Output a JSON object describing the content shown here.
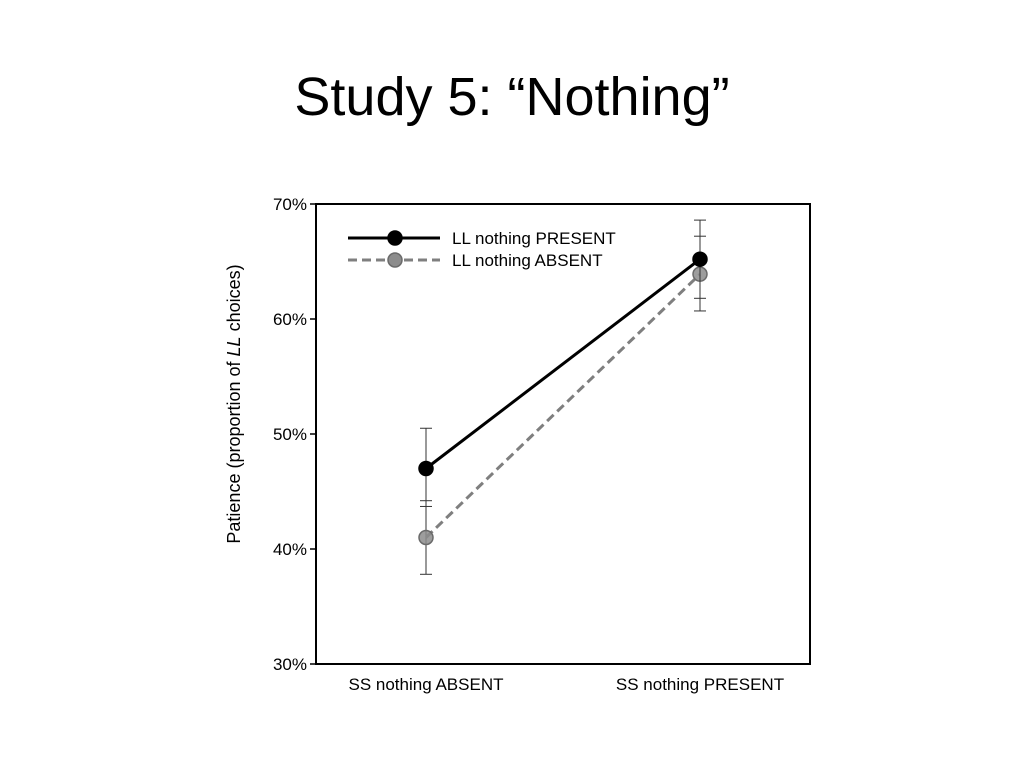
{
  "slide": {
    "title": "Study 5: “Nothing”"
  },
  "chart_data": {
    "type": "line",
    "title": "",
    "xlabel": "",
    "ylabel_parts": [
      "Patience (proportion of ",
      "LL",
      " choices)"
    ],
    "categories": [
      "SS nothing ABSENT",
      "SS nothing PRESENT"
    ],
    "ylim": [
      0.3,
      0.7
    ],
    "yticks": [
      {
        "value": 0.3,
        "label": "30%"
      },
      {
        "value": 0.4,
        "label": "40%"
      },
      {
        "value": 0.5,
        "label": "50%"
      },
      {
        "value": 0.6,
        "label": "60%"
      },
      {
        "value": 0.7,
        "label": "70%"
      }
    ],
    "grid": false,
    "legend_position": "top-left",
    "series": [
      {
        "name": "LL nothing PRESENT",
        "values": [
          0.47,
          0.652
        ],
        "error_low": [
          0.437,
          0.618
        ],
        "error_high": [
          0.505,
          0.686
        ],
        "color": "#000000",
        "marker_color": "#000000",
        "dashed": false
      },
      {
        "name": "LL nothing ABSENT",
        "values": [
          0.41,
          0.639
        ],
        "error_low": [
          0.378,
          0.607
        ],
        "error_high": [
          0.442,
          0.672
        ],
        "color": "#7f7f7f",
        "marker_color": "#8c8c8c",
        "dashed": true
      }
    ]
  }
}
